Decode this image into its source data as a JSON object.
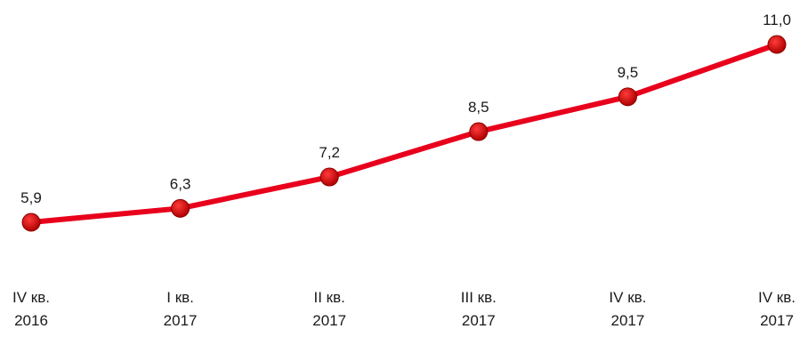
{
  "chart_data": {
    "type": "line",
    "categories": [
      [
        "IV кв.",
        "2016"
      ],
      [
        "I кв.",
        "2017"
      ],
      [
        "II кв.",
        "2017"
      ],
      [
        "III кв.",
        "2017"
      ],
      [
        "IV кв.",
        "2017"
      ],
      [
        "IV кв.",
        "2017"
      ]
    ],
    "series": [
      {
        "values": [
          5.9,
          6.3,
          7.2,
          8.5,
          9.5,
          11.0
        ],
        "labels": [
          "5,9",
          "6,3",
          "7,2",
          "8,5",
          "9,5",
          "11,0"
        ],
        "color": "#e8001c",
        "marker_color": "#c00000"
      }
    ],
    "title": "",
    "xlabel": "",
    "ylabel": "",
    "ylim": [
      0,
      12
    ],
    "grid": false,
    "legend": "none"
  }
}
